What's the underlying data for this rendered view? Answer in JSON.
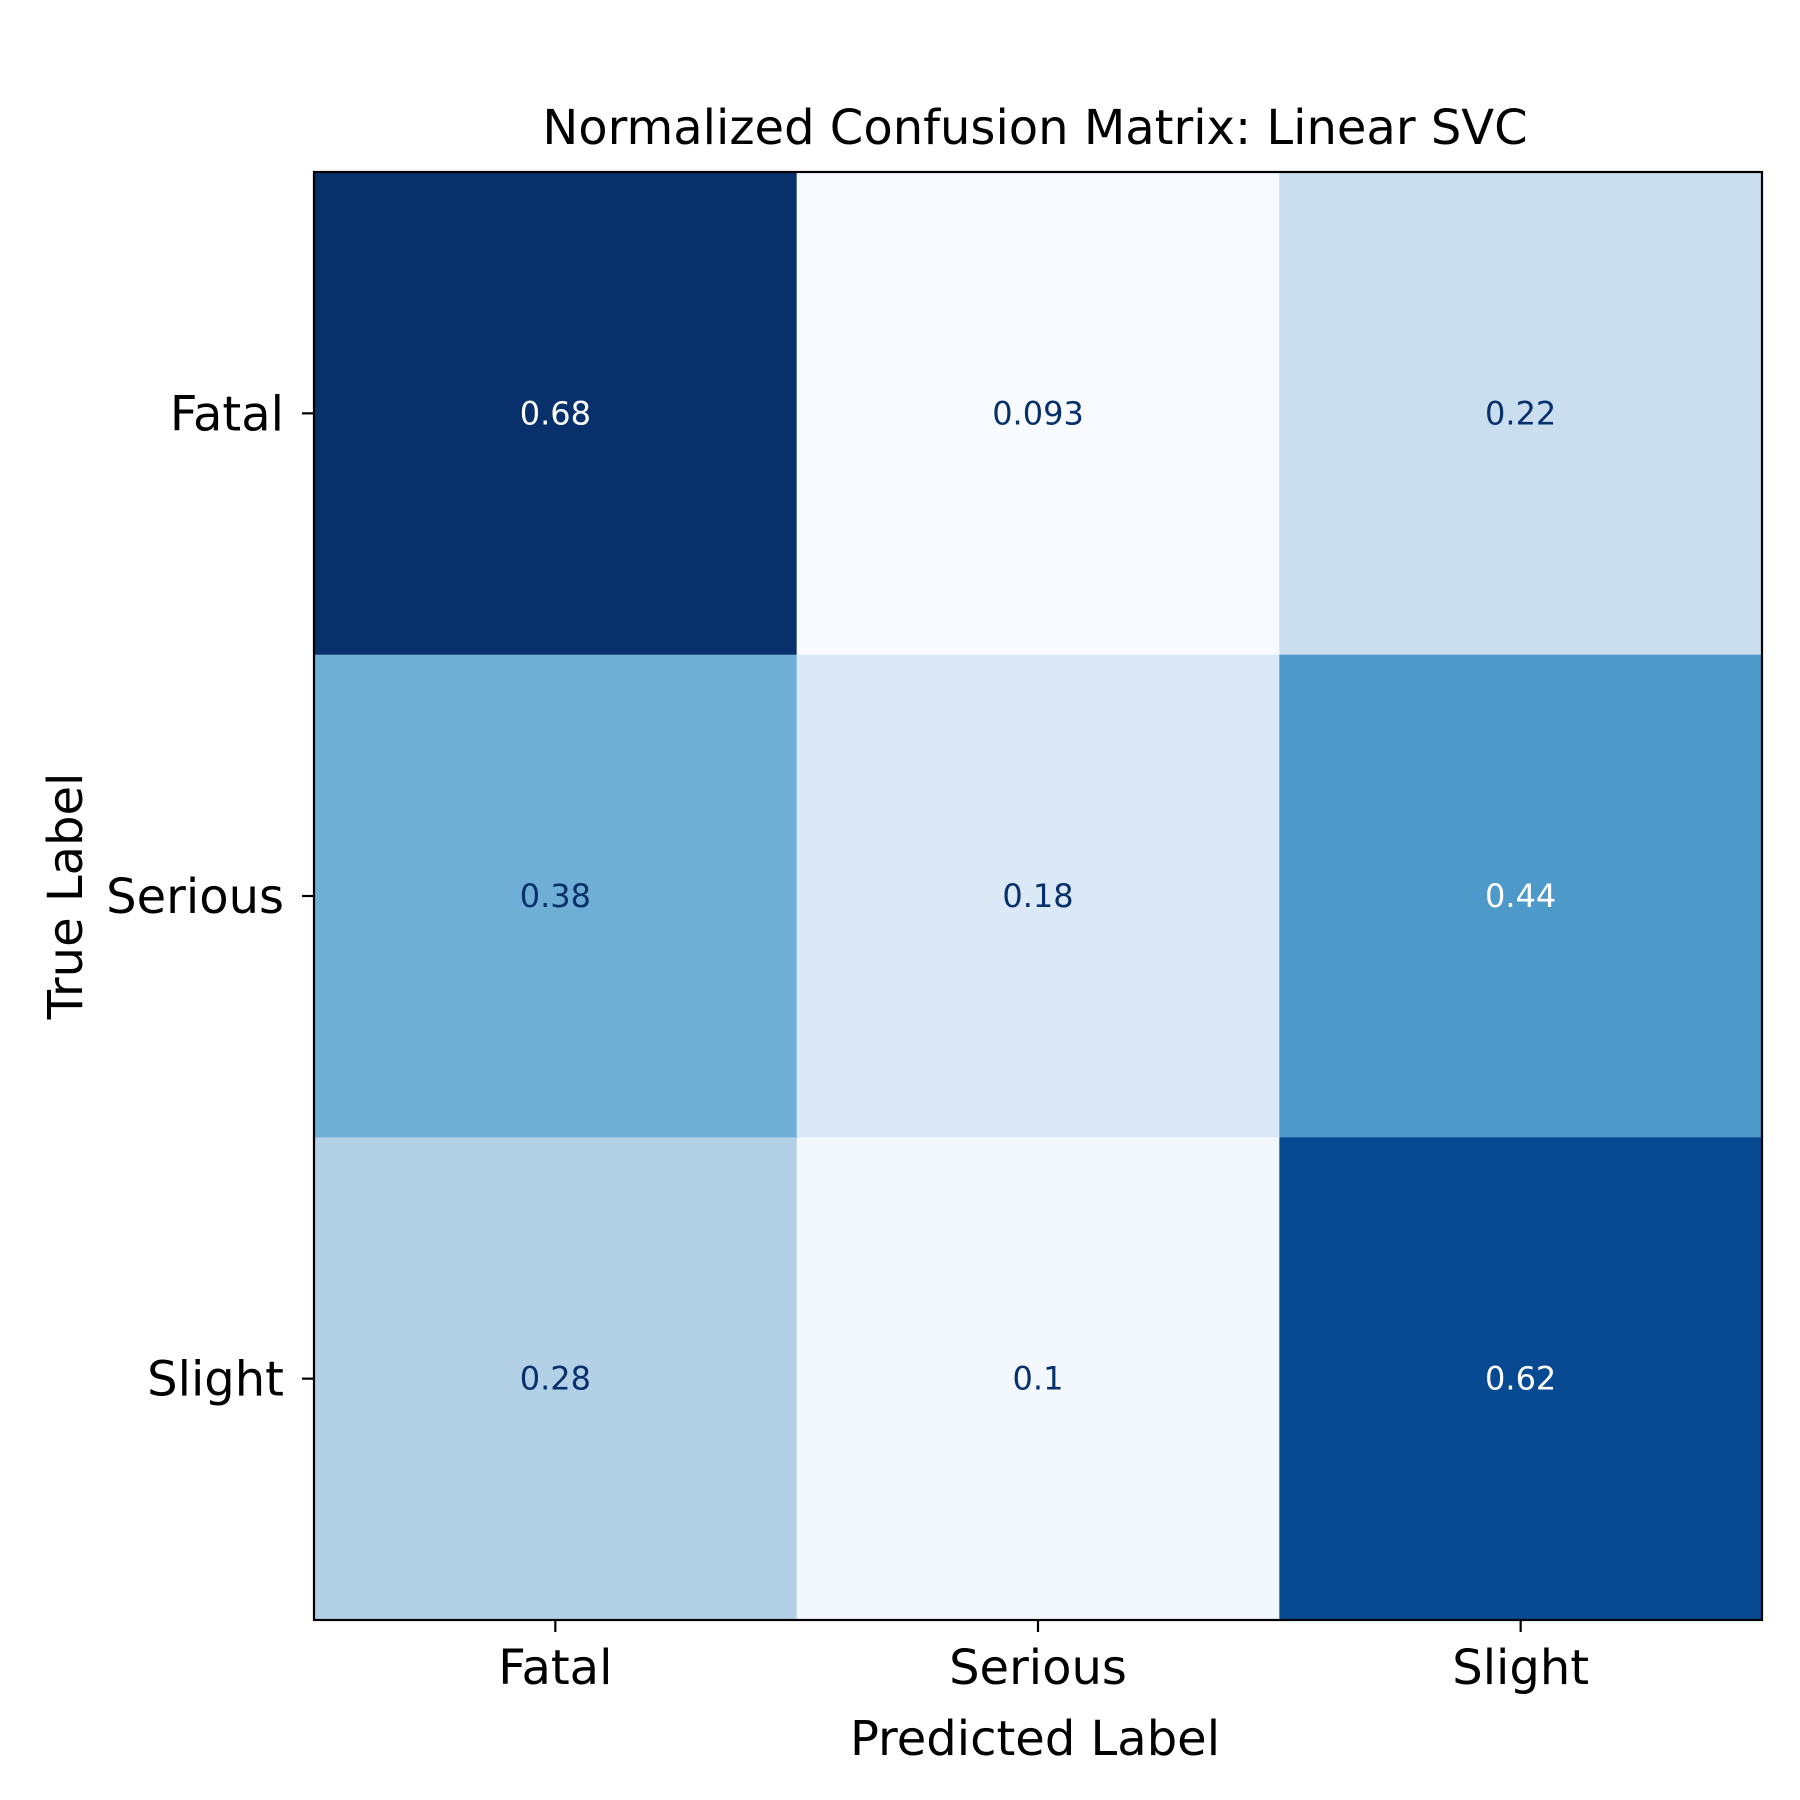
{
  "chart_data": {
    "type": "heatmap",
    "title": "Normalized Confusion Matrix: Linear SVC",
    "xlabel": "Predicted Label",
    "ylabel": "True Label",
    "x_categories": [
      "Fatal",
      "Serious",
      "Slight"
    ],
    "y_categories": [
      "Fatal",
      "Serious",
      "Slight"
    ],
    "values": [
      [
        0.68,
        0.093,
        0.22
      ],
      [
        0.38,
        0.18,
        0.44
      ],
      [
        0.28,
        0.1,
        0.62
      ]
    ],
    "value_labels": [
      [
        "0.68",
        "0.093",
        "0.22"
      ],
      [
        "0.38",
        "0.18",
        "0.44"
      ],
      [
        "0.28",
        "0.1",
        "0.62"
      ]
    ],
    "colormap": "Blues",
    "colors": {
      "cells": [
        [
          "#08306b",
          "#f7fbff",
          "#cbdef0"
        ],
        [
          "#6fafd6",
          "#dbe8f5",
          "#4d9aca"
        ],
        [
          "#b2d1e7",
          "#f3f8fe",
          "#084a91"
        ]
      ],
      "label_on_dark": "#ffffff",
      "label_on_light": "#08306b"
    },
    "grid": false,
    "colorbar": false
  }
}
